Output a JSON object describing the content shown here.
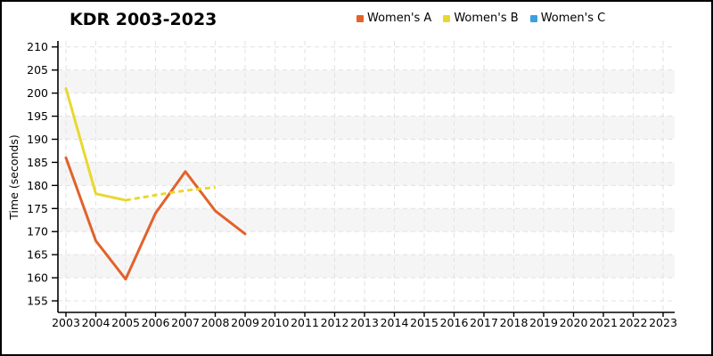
{
  "chart_data": {
    "type": "line",
    "title": "KDR 2003-2023",
    "xlabel": "",
    "ylabel": "Time (seconds)",
    "x": [
      2003,
      2004,
      2005,
      2006,
      2007,
      2008,
      2009,
      2010,
      2011,
      2012,
      2013,
      2014,
      2015,
      2016,
      2017,
      2018,
      2019,
      2020,
      2021,
      2022,
      2023
    ],
    "yticks": [
      155,
      160,
      165,
      170,
      175,
      180,
      185,
      190,
      195,
      200,
      205,
      210
    ],
    "ylim": [
      152.5,
      211.3
    ],
    "grid": "dashed light-gray vertical per year and horizontal per 5s, alternating gray bands every 5 units",
    "legend_position": "top-center",
    "colors": {
      "band": "#F5F5F5",
      "gridline": "#E2E2E2",
      "axis": "#000000"
    },
    "series": [
      {
        "name": "Women's A",
        "color": "#E2622B",
        "segments": [
          {
            "style": "solid",
            "x": [
              2003,
              2004,
              2005,
              2006,
              2007,
              2008,
              2009
            ],
            "y": [
              186,
              168,
              159.7,
              174,
              183,
              174.5,
              169.5
            ]
          }
        ]
      },
      {
        "name": "Women's B",
        "color": "#E8D830",
        "segments": [
          {
            "style": "solid",
            "x": [
              2003,
              2004,
              2005
            ],
            "y": [
              201,
              178.2,
              176.8
            ]
          },
          {
            "style": "dashed",
            "x": [
              2005,
              2006,
              2007,
              2008
            ],
            "y": [
              176.8,
              177.9,
              178.9,
              179.6
            ]
          }
        ]
      },
      {
        "name": "Women's C",
        "color": "#3D9EE0",
        "segments": []
      }
    ]
  }
}
